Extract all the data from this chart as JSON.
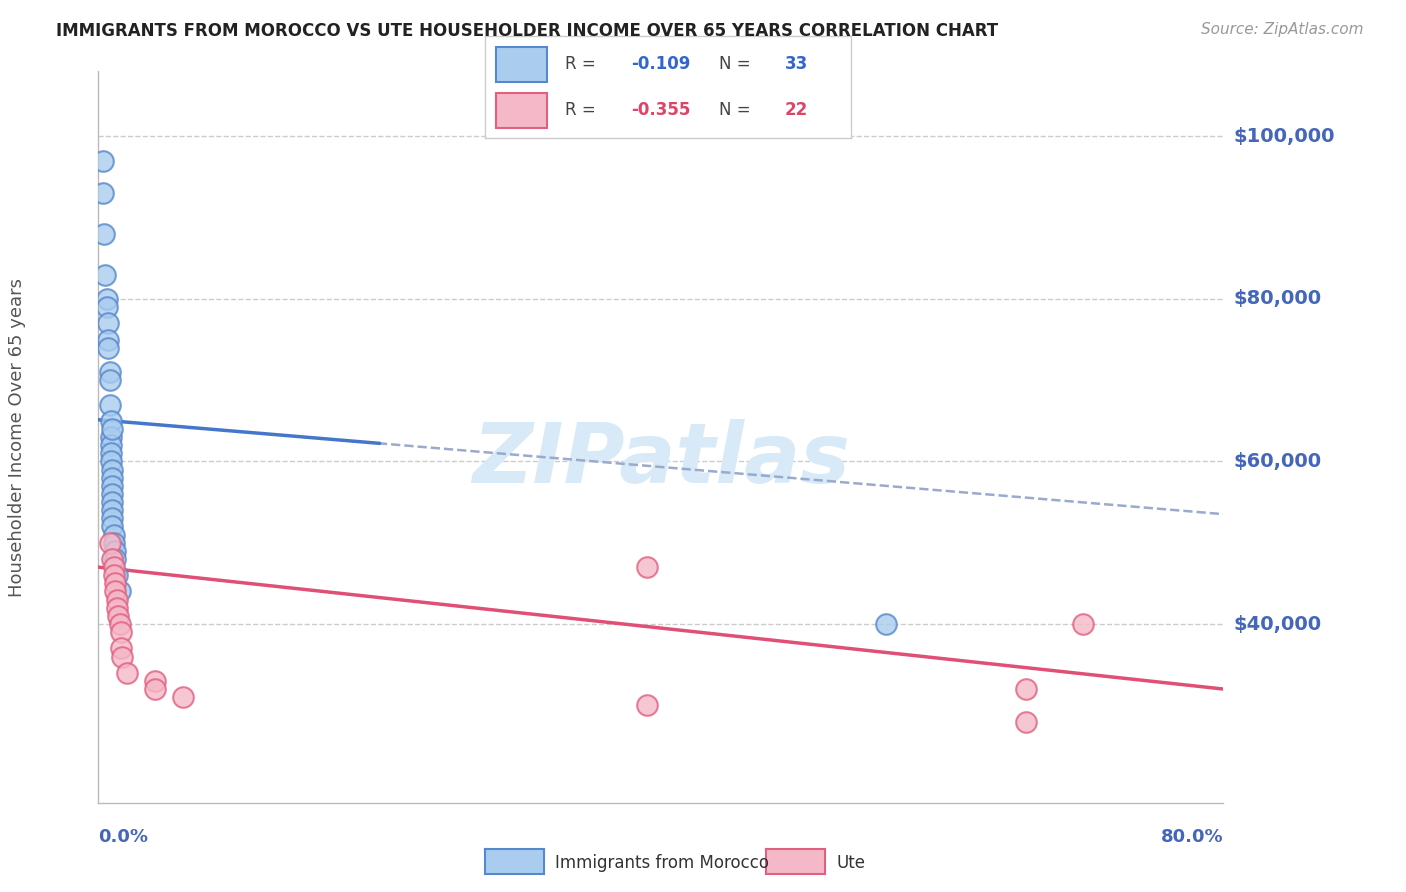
{
  "title": "IMMIGRANTS FROM MOROCCO VS UTE HOUSEHOLDER INCOME OVER 65 YEARS CORRELATION CHART",
  "source": "Source: ZipAtlas.com",
  "ylabel": "Householder Income Over 65 years",
  "ytick_values": [
    40000,
    60000,
    80000,
    100000
  ],
  "ytick_labels": [
    "$40,000",
    "$60,000",
    "$80,000",
    "$100,000"
  ],
  "ylim": [
    18000,
    108000
  ],
  "xlim": [
    0.0,
    0.8
  ],
  "legend_blue_r": "-0.109",
  "legend_blue_n": "33",
  "legend_pink_r": "-0.355",
  "legend_pink_n": "22",
  "legend_label_blue": "Immigrants from Morocco",
  "legend_label_pink": "Ute",
  "blue_scatter_color": "#AACCEE",
  "blue_scatter_edge": "#5588CC",
  "pink_scatter_color": "#F5B8C8",
  "pink_scatter_edge": "#E06080",
  "blue_line_color": "#4477CC",
  "pink_line_color": "#E05075",
  "dashed_line_color": "#99AACC",
  "r_n_color_blue": "#3366CC",
  "r_n_color_pink": "#DD4466",
  "watermark_color": "#D8EAF8",
  "title_color": "#222222",
  "source_color": "#999999",
  "ylabel_color": "#555555",
  "axis_label_color": "#4466BB",
  "grid_color": "#CCCCCC",
  "blue_x": [
    0.003,
    0.003,
    0.004,
    0.005,
    0.006,
    0.006,
    0.007,
    0.007,
    0.007,
    0.008,
    0.008,
    0.008,
    0.009,
    0.009,
    0.009,
    0.009,
    0.009,
    0.01,
    0.01,
    0.01,
    0.01,
    0.01,
    0.01,
    0.01,
    0.01,
    0.011,
    0.011,
    0.012,
    0.012,
    0.013,
    0.015,
    0.56,
    0.01
  ],
  "blue_y": [
    97000,
    93000,
    88000,
    83000,
    80000,
    79000,
    77000,
    75000,
    74000,
    71000,
    70000,
    67000,
    65000,
    63000,
    62000,
    61000,
    60000,
    59000,
    58000,
    57000,
    56000,
    55000,
    54000,
    53000,
    52000,
    51000,
    50000,
    49000,
    48000,
    46000,
    44000,
    40000,
    64000
  ],
  "pink_x": [
    0.008,
    0.01,
    0.011,
    0.011,
    0.012,
    0.012,
    0.013,
    0.013,
    0.014,
    0.015,
    0.016,
    0.016,
    0.017,
    0.02,
    0.04,
    0.04,
    0.06,
    0.39,
    0.39,
    0.66,
    0.66,
    0.7
  ],
  "pink_y": [
    50000,
    48000,
    47000,
    46000,
    45000,
    44000,
    43000,
    42000,
    41000,
    40000,
    39000,
    37000,
    36000,
    34000,
    33000,
    32000,
    31000,
    47000,
    30000,
    32000,
    28000,
    40000
  ],
  "marker_size": 220
}
